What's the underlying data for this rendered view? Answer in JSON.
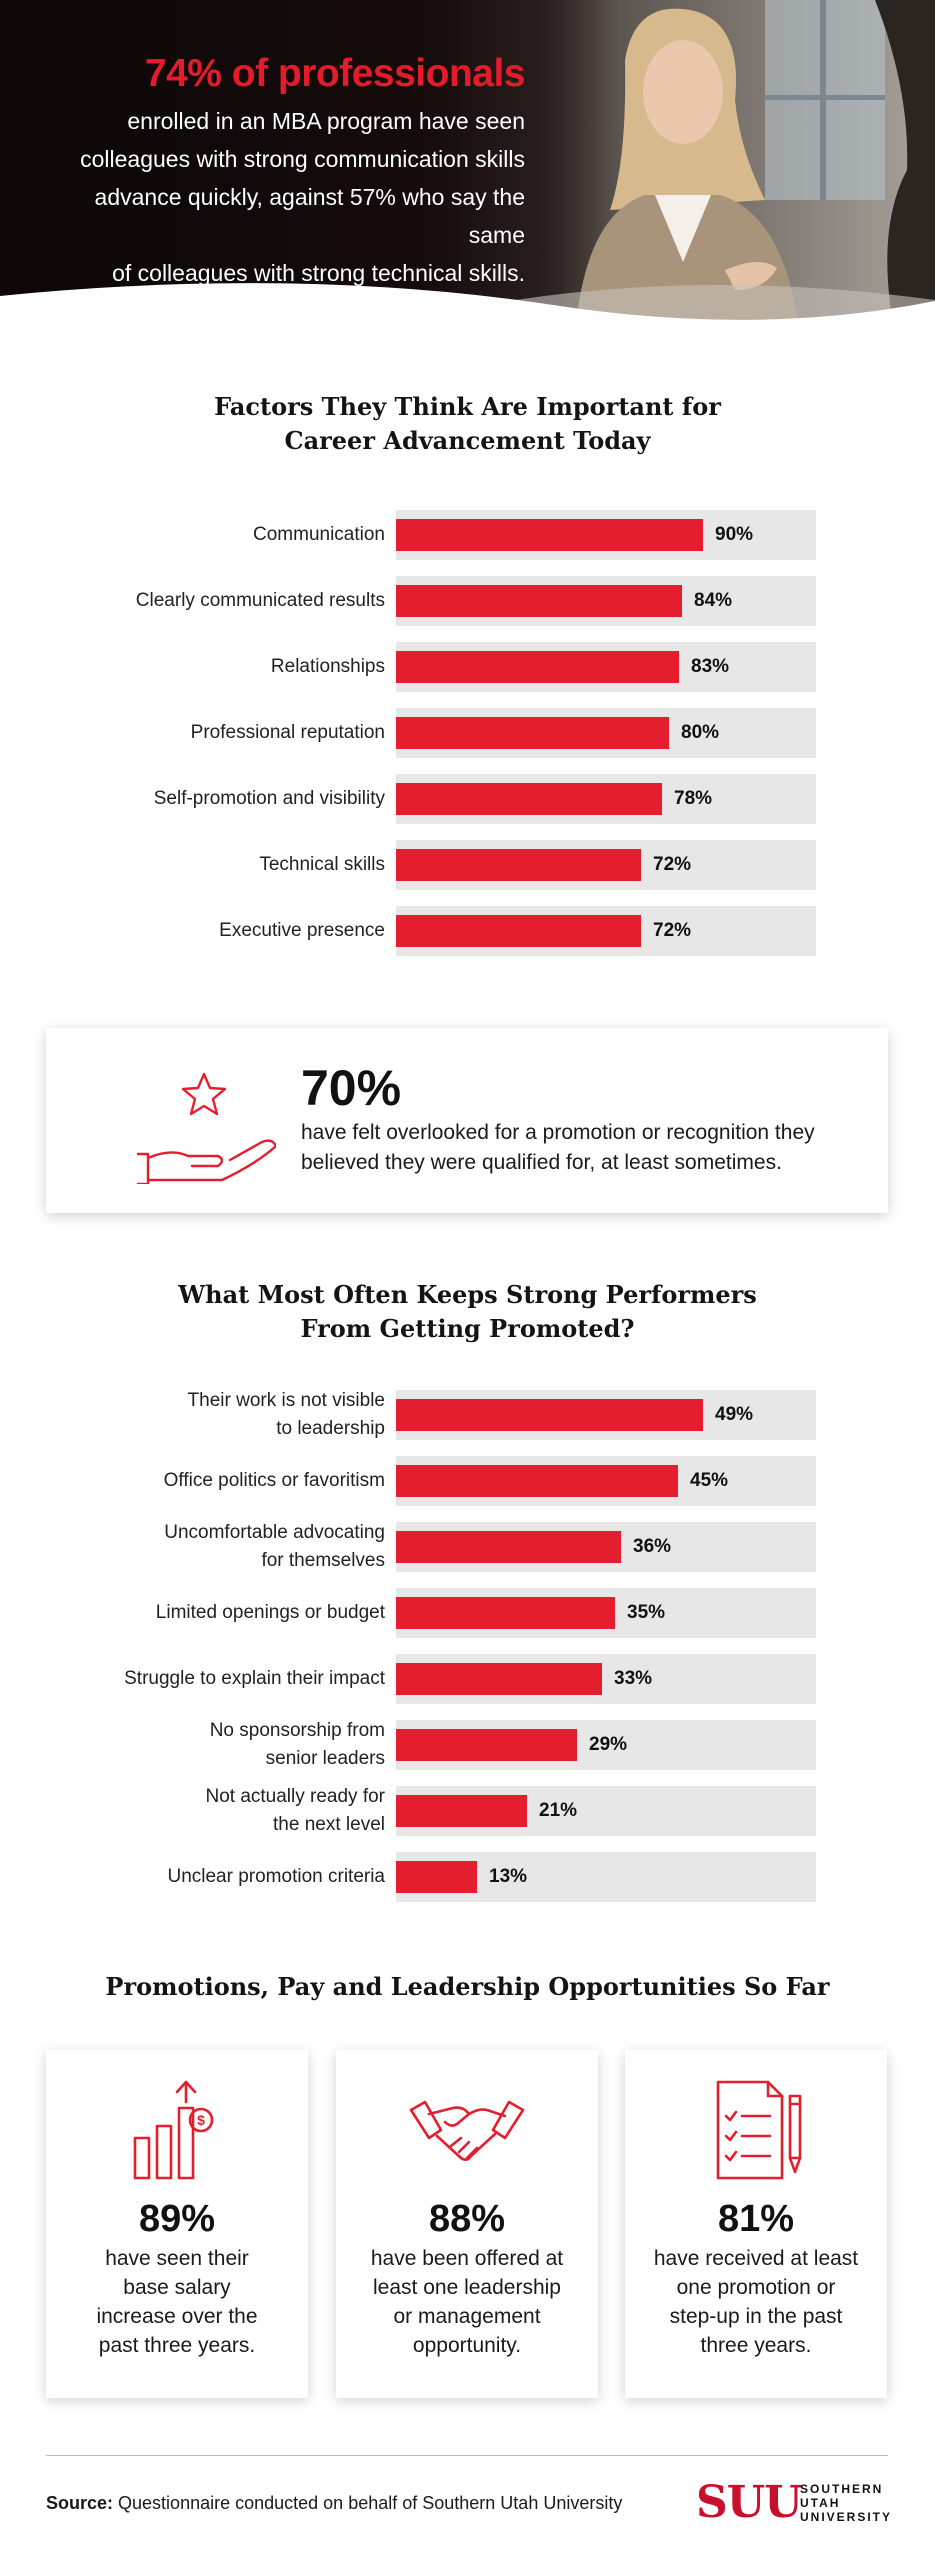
{
  "hero": {
    "headline": "74% of professionals",
    "lines": [
      "enrolled in an MBA program have seen",
      "colleagues with strong communication skills",
      "advance quickly, against 57% who say the same",
      "of colleagues with strong technical skills."
    ]
  },
  "section1": {
    "title_lines": [
      "Factors They Think Are Important for",
      "Career Advancement Today"
    ]
  },
  "callout": {
    "icon": "hand-holding-star-icon",
    "percent": "70%",
    "text_lines": [
      "have felt overlooked for a promotion or recognition they",
      "believed they were qualified for, at least sometimes."
    ]
  },
  "section2": {
    "title_lines": [
      "What Most Often Keeps Strong Performers",
      "From Getting Promoted?"
    ]
  },
  "section3": {
    "title": "Promotions, Pay and Leadership Opportunities So Far"
  },
  "cards": [
    {
      "icon": "salary-bar-chart-icon",
      "percent": "89%",
      "text_lines": [
        "have seen their",
        "base salary",
        "increase over the",
        "past three years."
      ]
    },
    {
      "icon": "handshake-icon",
      "percent": "88%",
      "text_lines": [
        "have been offered at",
        "least one leadership",
        "or management",
        "opportunity."
      ]
    },
    {
      "icon": "checklist-document-icon",
      "percent": "81%",
      "text_lines": [
        "have received at least",
        "one promotion or",
        "step-up in the past",
        "three years."
      ]
    }
  ],
  "footer": {
    "source_label": "Source:",
    "source_text": " Questionnaire conducted on behalf of Southern Utah University",
    "logo_mark": "SUU",
    "logo_words": [
      "SOUTHERN",
      "UTAH",
      "UNIVERSITY"
    ]
  },
  "colors": {
    "accent": "#e41e2e",
    "track": "#e7e7e7",
    "dark": "#141414",
    "brand": "#c8102e"
  },
  "chart_data": [
    {
      "type": "bar",
      "orientation": "horizontal",
      "title": "Factors They Think Are Important for Career Advancement Today",
      "unit": "%",
      "xlim": [
        0,
        100
      ],
      "categories": [
        [
          "Communication"
        ],
        [
          "Clearly communicated results"
        ],
        [
          "Relationships"
        ],
        [
          "Professional reputation"
        ],
        [
          "Self-promotion and visibility"
        ],
        [
          "Technical skills"
        ],
        [
          "Executive presence"
        ]
      ],
      "values": [
        90,
        84,
        83,
        80,
        78,
        72,
        72
      ],
      "value_labels": [
        "90%",
        "84%",
        "83%",
        "80%",
        "78%",
        "72%",
        "72%"
      ]
    },
    {
      "type": "bar",
      "orientation": "horizontal",
      "title": "What Most Often Keeps Strong Performers From Getting Promoted?",
      "unit": "%",
      "xlim": [
        0,
        55
      ],
      "categories": [
        [
          "Their work is not visible",
          "to leadership"
        ],
        [
          "Office politics or favoritism"
        ],
        [
          "Uncomfortable advocating",
          "for themselves"
        ],
        [
          "Limited openings or budget"
        ],
        [
          "Struggle to explain their impact"
        ],
        [
          "No sponsorship from",
          "senior leaders"
        ],
        [
          "Not actually ready for",
          "the next level"
        ],
        [
          "Unclear promotion criteria"
        ]
      ],
      "values": [
        49,
        45,
        36,
        35,
        33,
        29,
        21,
        13
      ],
      "value_labels": [
        "49%",
        "45%",
        "36%",
        "35%",
        "33%",
        "29%",
        "21%",
        "13%"
      ]
    }
  ]
}
